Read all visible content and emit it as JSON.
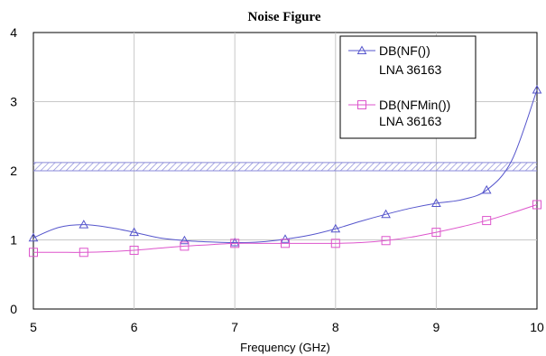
{
  "chart_data": {
    "type": "line",
    "title": "Noise Figure",
    "xlabel": "Frequency (GHz)",
    "ylabel": "",
    "xlim": [
      5,
      10
    ],
    "ylim": [
      0,
      4
    ],
    "xticks": [
      "5",
      "6",
      "7",
      "8",
      "9",
      "10"
    ],
    "yticks": [
      "0",
      "1",
      "2",
      "3",
      "4"
    ],
    "grid": true,
    "legend_position": "top-right",
    "reference_band": {
      "y_low": 2.0,
      "y_high": 2.12,
      "color": "#8a8ad8"
    },
    "series": [
      {
        "name": "DB(NF())",
        "subtitle": "LNA 36163",
        "color": "#5555cc",
        "marker": "triangle",
        "x": [
          5.0,
          5.25,
          5.5,
          5.75,
          6.0,
          6.25,
          6.5,
          6.75,
          7.0,
          7.25,
          7.5,
          7.75,
          8.0,
          8.25,
          8.5,
          8.75,
          9.0,
          9.25,
          9.5,
          9.75,
          10.0
        ],
        "values": [
          1.03,
          1.18,
          1.22,
          1.18,
          1.11,
          1.03,
          0.99,
          0.97,
          0.96,
          0.97,
          1.01,
          1.07,
          1.16,
          1.27,
          1.37,
          1.46,
          1.53,
          1.58,
          1.72,
          2.15,
          3.17
        ]
      },
      {
        "name": "DB(NFMin())",
        "subtitle": "LNA 36163",
        "color": "#dd55cc",
        "marker": "square",
        "x": [
          5.0,
          5.25,
          5.5,
          5.75,
          6.0,
          6.25,
          6.5,
          6.75,
          7.0,
          7.25,
          7.5,
          7.75,
          8.0,
          8.25,
          8.5,
          8.75,
          9.0,
          9.25,
          9.5,
          9.75,
          10.0
        ],
        "values": [
          0.82,
          0.82,
          0.82,
          0.83,
          0.85,
          0.88,
          0.91,
          0.93,
          0.95,
          0.95,
          0.95,
          0.95,
          0.95,
          0.96,
          0.99,
          1.04,
          1.11,
          1.19,
          1.28,
          1.39,
          1.51
        ]
      }
    ],
    "marker_indices": [
      [
        0,
        2,
        4,
        6,
        8,
        10,
        12,
        14,
        16,
        18,
        20
      ],
      [
        0,
        2,
        4,
        6,
        8,
        10,
        12,
        14,
        16,
        18,
        20
      ]
    ]
  }
}
